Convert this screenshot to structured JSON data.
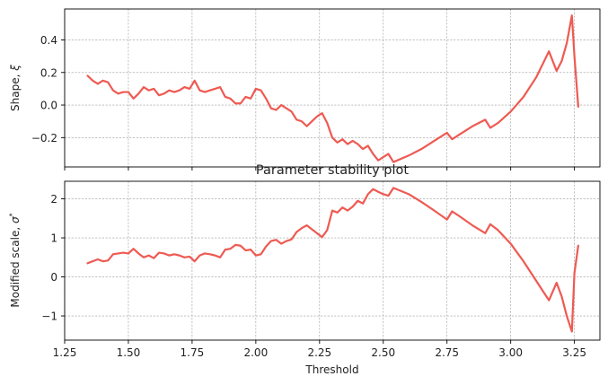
{
  "figure": {
    "title": "Parameter stability plot",
    "xlabel": "Threshold"
  },
  "colors": {
    "line": "#ee5a52",
    "grid": "#9a9a9a",
    "axis": "#000000",
    "background": "#ffffff"
  },
  "chart_data": [
    {
      "type": "line",
      "panel": "top",
      "ylabel": "Shape, ξ",
      "xlim": [
        1.25,
        3.35
      ],
      "ylim": [
        -0.38,
        0.59
      ],
      "xticks": [
        1.25,
        1.5,
        1.75,
        2.0,
        2.25,
        2.5,
        2.75,
        3.0,
        3.25
      ],
      "yticks": [
        -0.2,
        0.0,
        0.2,
        0.4
      ],
      "ytick_labels": [
        "−0.2",
        "0.0",
        "0.2",
        "0.4"
      ],
      "grid": true,
      "series": [
        {
          "x": [
            1.34,
            1.36,
            1.38,
            1.4,
            1.42,
            1.44,
            1.46,
            1.48,
            1.5,
            1.52,
            1.54,
            1.56,
            1.58,
            1.6,
            1.62,
            1.64,
            1.66,
            1.68,
            1.7,
            1.72,
            1.74,
            1.76,
            1.78,
            1.8,
            1.82,
            1.84,
            1.86,
            1.88,
            1.9,
            1.92,
            1.94,
            1.96,
            1.98,
            2.0,
            2.02,
            2.04,
            2.06,
            2.08,
            2.1,
            2.12,
            2.14,
            2.16,
            2.18,
            2.2,
            2.22,
            2.24,
            2.26,
            2.28,
            2.3,
            2.32,
            2.34,
            2.36,
            2.38,
            2.4,
            2.42,
            2.44,
            2.46,
            2.48,
            2.5,
            2.52,
            2.54,
            2.6,
            2.65,
            2.7,
            2.75,
            2.77,
            2.8,
            2.85,
            2.9,
            2.92,
            2.95,
            3.0,
            3.05,
            3.1,
            3.15,
            3.18,
            3.2,
            3.22,
            3.24,
            3.25,
            3.265
          ],
          "y": [
            0.18,
            0.15,
            0.13,
            0.15,
            0.14,
            0.09,
            0.07,
            0.08,
            0.08,
            0.04,
            0.07,
            0.11,
            0.09,
            0.1,
            0.06,
            0.07,
            0.09,
            0.08,
            0.09,
            0.11,
            0.1,
            0.15,
            0.09,
            0.08,
            0.09,
            0.1,
            0.11,
            0.05,
            0.04,
            0.01,
            0.01,
            0.05,
            0.04,
            0.1,
            0.09,
            0.04,
            -0.02,
            -0.03,
            0.0,
            -0.02,
            -0.04,
            -0.09,
            -0.1,
            -0.13,
            -0.1,
            -0.07,
            -0.05,
            -0.11,
            -0.2,
            -0.23,
            -0.21,
            -0.24,
            -0.22,
            -0.24,
            -0.27,
            -0.25,
            -0.3,
            -0.34,
            -0.32,
            -0.3,
            -0.35,
            -0.31,
            -0.27,
            -0.22,
            -0.17,
            -0.21,
            -0.18,
            -0.13,
            -0.09,
            -0.14,
            -0.11,
            -0.04,
            0.05,
            0.17,
            0.33,
            0.21,
            0.27,
            0.38,
            0.55,
            0.3,
            -0.01
          ]
        }
      ]
    },
    {
      "type": "line",
      "panel": "bottom",
      "title": "Parameter stability plot",
      "xlabel": "Threshold",
      "ylabel": "Modified scale, σ*",
      "xlim": [
        1.25,
        3.35
      ],
      "ylim": [
        -1.62,
        2.45
      ],
      "xticks": [
        1.25,
        1.5,
        1.75,
        2.0,
        2.25,
        2.5,
        2.75,
        3.0,
        3.25
      ],
      "xtick_labels": [
        "1.25",
        "1.50",
        "1.75",
        "2.00",
        "2.25",
        "2.50",
        "2.75",
        "3.00",
        "3.25"
      ],
      "yticks": [
        -1,
        0,
        1,
        2
      ],
      "ytick_labels": [
        "−1",
        "0",
        "1",
        "2"
      ],
      "grid": true,
      "series": [
        {
          "x": [
            1.34,
            1.36,
            1.38,
            1.4,
            1.42,
            1.44,
            1.46,
            1.48,
            1.5,
            1.52,
            1.54,
            1.56,
            1.58,
            1.6,
            1.62,
            1.64,
            1.66,
            1.68,
            1.7,
            1.72,
            1.74,
            1.76,
            1.78,
            1.8,
            1.82,
            1.84,
            1.86,
            1.88,
            1.9,
            1.92,
            1.94,
            1.96,
            1.98,
            2.0,
            2.02,
            2.04,
            2.06,
            2.08,
            2.1,
            2.12,
            2.14,
            2.16,
            2.18,
            2.2,
            2.22,
            2.24,
            2.26,
            2.28,
            2.3,
            2.32,
            2.34,
            2.36,
            2.38,
            2.4,
            2.42,
            2.44,
            2.46,
            2.48,
            2.5,
            2.52,
            2.54,
            2.6,
            2.65,
            2.7,
            2.75,
            2.77,
            2.8,
            2.85,
            2.9,
            2.92,
            2.95,
            3.0,
            3.05,
            3.1,
            3.15,
            3.18,
            3.2,
            3.22,
            3.24,
            3.25,
            3.265
          ],
          "y": [
            0.35,
            0.4,
            0.45,
            0.4,
            0.42,
            0.58,
            0.6,
            0.62,
            0.6,
            0.72,
            0.6,
            0.5,
            0.55,
            0.48,
            0.62,
            0.6,
            0.55,
            0.58,
            0.55,
            0.5,
            0.52,
            0.4,
            0.55,
            0.6,
            0.58,
            0.55,
            0.5,
            0.7,
            0.72,
            0.82,
            0.8,
            0.68,
            0.7,
            0.55,
            0.58,
            0.78,
            0.92,
            0.95,
            0.85,
            0.92,
            0.96,
            1.15,
            1.25,
            1.32,
            1.22,
            1.12,
            1.02,
            1.2,
            1.7,
            1.65,
            1.78,
            1.7,
            1.8,
            1.95,
            1.88,
            2.12,
            2.25,
            2.18,
            2.12,
            2.08,
            2.28,
            2.12,
            1.92,
            1.7,
            1.47,
            1.68,
            1.55,
            1.32,
            1.12,
            1.35,
            1.2,
            0.85,
            0.4,
            -0.1,
            -0.6,
            -0.15,
            -0.5,
            -1.0,
            -1.4,
            0.1,
            0.8
          ]
        }
      ]
    }
  ]
}
